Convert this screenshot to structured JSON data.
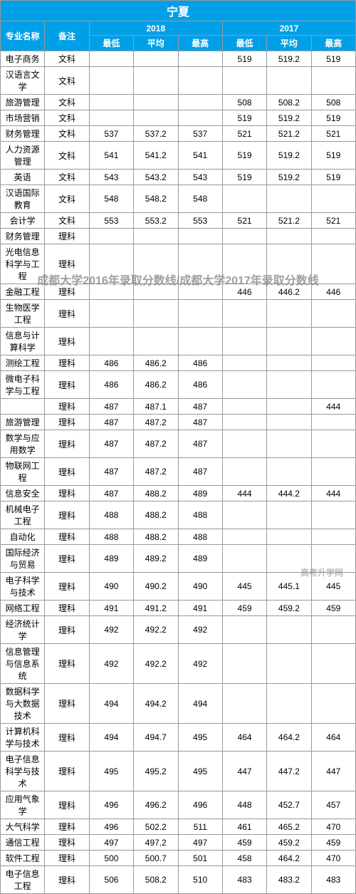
{
  "title": "宁夏",
  "headers": {
    "name": "专业名称",
    "note": "备注",
    "year1": "2018",
    "year2": "2017",
    "low": "最低",
    "avg": "平均",
    "high": "最高"
  },
  "watermark1": "成都大学2016年录取分数线/成都大学2017年录取分数线",
  "watermark2": "高考升学网",
  "rows": [
    {
      "name": "电子商务",
      "note": "文科",
      "a": "",
      "b": "",
      "c": "",
      "d": "519",
      "e": "519.2",
      "f": "519"
    },
    {
      "name": "汉语言文学",
      "note": "文科",
      "a": "",
      "b": "",
      "c": "",
      "d": "",
      "e": "",
      "f": ""
    },
    {
      "name": "旅游管理",
      "note": "文科",
      "a": "",
      "b": "",
      "c": "",
      "d": "508",
      "e": "508.2",
      "f": "508"
    },
    {
      "name": "市场营销",
      "note": "文科",
      "a": "",
      "b": "",
      "c": "",
      "d": "519",
      "e": "519.2",
      "f": "519"
    },
    {
      "name": "财务管理",
      "note": "文科",
      "a": "537",
      "b": "537.2",
      "c": "537",
      "d": "521",
      "e": "521.2",
      "f": "521"
    },
    {
      "name": "人力资源管理",
      "note": "文科",
      "a": "541",
      "b": "541.2",
      "c": "541",
      "d": "519",
      "e": "519.2",
      "f": "519"
    },
    {
      "name": "英语",
      "note": "文科",
      "a": "543",
      "b": "543.2",
      "c": "543",
      "d": "519",
      "e": "519.2",
      "f": "519"
    },
    {
      "name": "汉语国际教育",
      "note": "文科",
      "a": "548",
      "b": "548.2",
      "c": "548",
      "d": "",
      "e": "",
      "f": ""
    },
    {
      "name": "会计学",
      "note": "文科",
      "a": "553",
      "b": "553.2",
      "c": "553",
      "d": "521",
      "e": "521.2",
      "f": "521"
    },
    {
      "name": "财务管理",
      "note": "理科",
      "a": "",
      "b": "",
      "c": "",
      "d": "",
      "e": "",
      "f": ""
    },
    {
      "name": "光电信息科学与工程",
      "note": "理科",
      "a": "",
      "b": "",
      "c": "",
      "d": "",
      "e": "",
      "f": ""
    },
    {
      "name": "金融工程",
      "note": "理科",
      "a": "",
      "b": "",
      "c": "",
      "d": "446",
      "e": "446.2",
      "f": "446"
    },
    {
      "name": "生物医学工程",
      "note": "理科",
      "a": "",
      "b": "",
      "c": "",
      "d": "",
      "e": "",
      "f": ""
    },
    {
      "name": "信息与计算科学",
      "note": "理科",
      "a": "",
      "b": "",
      "c": "",
      "d": "",
      "e": "",
      "f": ""
    },
    {
      "name": "测绘工程",
      "note": "理科",
      "a": "486",
      "b": "486.2",
      "c": "486",
      "d": "",
      "e": "",
      "f": ""
    },
    {
      "name": "微电子科学与工程",
      "note": "理科",
      "a": "486",
      "b": "486.2",
      "c": "486",
      "d": "",
      "e": "",
      "f": ""
    },
    {
      "name": "",
      "note": "理科",
      "a": "487",
      "b": "487.1",
      "c": "487",
      "d": "",
      "e": "",
      "f": "444"
    },
    {
      "name": "旅游管理",
      "note": "理科",
      "a": "487",
      "b": "487.2",
      "c": "487",
      "d": "",
      "e": "",
      "f": ""
    },
    {
      "name": "数学与应用数学",
      "note": "理科",
      "a": "487",
      "b": "487.2",
      "c": "487",
      "d": "",
      "e": "",
      "f": ""
    },
    {
      "name": "物联网工程",
      "note": "理科",
      "a": "487",
      "b": "487.2",
      "c": "487",
      "d": "",
      "e": "",
      "f": ""
    },
    {
      "name": "信息安全",
      "note": "理科",
      "a": "487",
      "b": "488.2",
      "c": "489",
      "d": "444",
      "e": "444.2",
      "f": "444"
    },
    {
      "name": "机械电子工程",
      "note": "理科",
      "a": "488",
      "b": "488.2",
      "c": "488",
      "d": "",
      "e": "",
      "f": ""
    },
    {
      "name": "自动化",
      "note": "理科",
      "a": "488",
      "b": "488.2",
      "c": "488",
      "d": "",
      "e": "",
      "f": ""
    },
    {
      "name": "国际经济与贸易",
      "note": "理科",
      "a": "489",
      "b": "489.2",
      "c": "489",
      "d": "",
      "e": "",
      "f": ""
    },
    {
      "name": "电子科学与技术",
      "note": "理科",
      "a": "490",
      "b": "490.2",
      "c": "490",
      "d": "445",
      "e": "445.1",
      "f": "445"
    },
    {
      "name": "网络工程",
      "note": "理科",
      "a": "491",
      "b": "491.2",
      "c": "491",
      "d": "459",
      "e": "459.2",
      "f": "459"
    },
    {
      "name": "经济统计学",
      "note": "理科",
      "a": "492",
      "b": "492.2",
      "c": "492",
      "d": "",
      "e": "",
      "f": ""
    },
    {
      "name": "信息管理与信息系统",
      "note": "理科",
      "a": "492",
      "b": "492.2",
      "c": "492",
      "d": "",
      "e": "",
      "f": ""
    },
    {
      "name": "数据科学与大数据技术",
      "note": "理科",
      "a": "494",
      "b": "494.2",
      "c": "494",
      "d": "",
      "e": "",
      "f": ""
    },
    {
      "name": "计算机科学与技术",
      "note": "理科",
      "a": "494",
      "b": "494.7",
      "c": "495",
      "d": "464",
      "e": "464.2",
      "f": "464"
    },
    {
      "name": "电子信息科学与技术",
      "note": "理科",
      "a": "495",
      "b": "495.2",
      "c": "495",
      "d": "447",
      "e": "447.2",
      "f": "447"
    },
    {
      "name": "应用气象学",
      "note": "理科",
      "a": "496",
      "b": "496.2",
      "c": "496",
      "d": "448",
      "e": "452.7",
      "f": "457"
    },
    {
      "name": "大气科学",
      "note": "理科",
      "a": "496",
      "b": "502.2",
      "c": "511",
      "d": "461",
      "e": "465.2",
      "f": "470"
    },
    {
      "name": "通信工程",
      "note": "理科",
      "a": "497",
      "b": "497.2",
      "c": "497",
      "d": "459",
      "e": "459.2",
      "f": "459"
    },
    {
      "name": "软件工程",
      "note": "理科",
      "a": "500",
      "b": "500.7",
      "c": "501",
      "d": "458",
      "e": "464.2",
      "f": "470"
    },
    {
      "name": "电子信息工程",
      "note": "理科",
      "a": "506",
      "b": "508.2",
      "c": "510",
      "d": "483",
      "e": "483.2",
      "f": "483"
    }
  ]
}
